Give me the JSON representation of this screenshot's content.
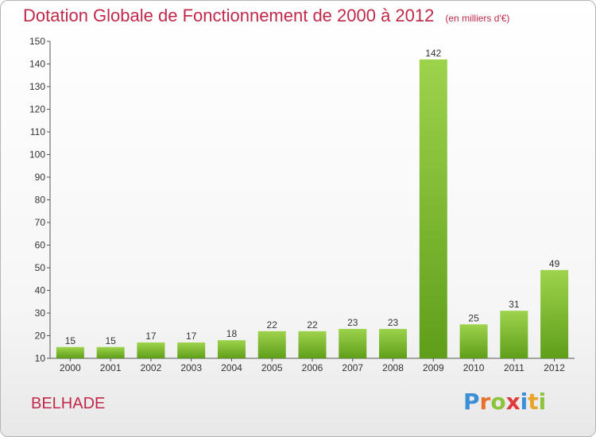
{
  "title": "Dotation Globale de Fonctionnement de 2000 à 2012",
  "subtitle": "(en milliers d'€)",
  "commune": "BELHADE",
  "logo": {
    "letters": [
      "P",
      "r",
      "o",
      "x",
      "i",
      "t",
      "i"
    ],
    "colors": [
      "#3a8fd6",
      "#e8702a",
      "#8cc43c",
      "#e03a3a",
      "#3a8fd6",
      "#e8a52a",
      "#8cc43c"
    ]
  },
  "colors": {
    "title": "#c0294a",
    "bar_top": "#9ed34c",
    "bar_bottom": "#5f9e1a"
  },
  "chart_data": {
    "type": "bar",
    "categories": [
      "2000",
      "2001",
      "2002",
      "2003",
      "2004",
      "2005",
      "2006",
      "2007",
      "2008",
      "2009",
      "2010",
      "2011",
      "2012"
    ],
    "values": [
      15,
      15,
      17,
      17,
      18,
      22,
      22,
      23,
      23,
      142,
      25,
      31,
      49
    ],
    "title": "Dotation Globale de Fonctionnement de 2000 à 2012",
    "subtitle": "(en milliers d'€)",
    "xlabel": "",
    "ylabel": "",
    "ylim": [
      10,
      150
    ],
    "yticks": [
      10,
      20,
      30,
      40,
      50,
      60,
      70,
      80,
      90,
      100,
      110,
      120,
      130,
      140,
      150
    ],
    "grid": false,
    "data_labels": true
  }
}
